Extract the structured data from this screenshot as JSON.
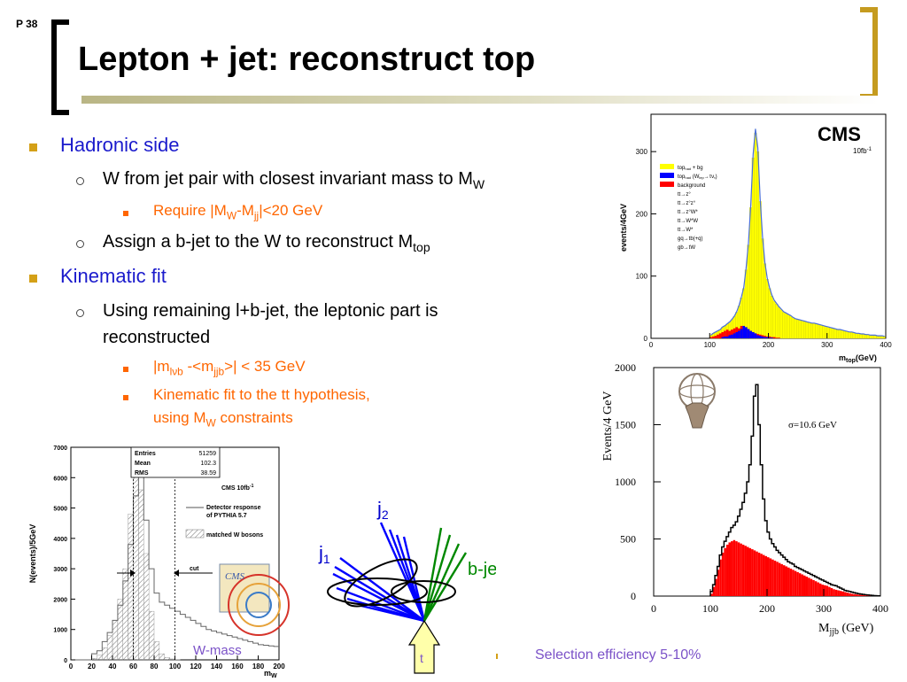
{
  "slide": {
    "page": "P 38",
    "title": "Lepton + jet: reconstruct top",
    "bullets": {
      "hadronic": "Hadronic side",
      "w_from": "W from jet pair with closest invariant mass to M",
      "w_from_sub": "W",
      "require_a": "Require |M",
      "require_sub1": "W",
      "require_b": "-M",
      "require_sub2": "jj",
      "require_c": "|<20 GeV",
      "assign": "Assign a b-jet to the W to reconstruct M",
      "assign_sub": "top",
      "kinematic": "Kinematic fit",
      "using_line1": "Using remaining l+b-jet, the leptonic part is",
      "using_line2": "reconstructed",
      "mlvb_a": "|m",
      "mlvb_sub": "lνb",
      "mlvb_b": " -<m",
      "mlvb_sub2": "jjb",
      "mlvb_c": ">| < 35 GeV",
      "fit_line1": "Kinematic fit to the tt hypothesis,",
      "fit_line2_a": "using M",
      "fit_line2_sub": "W",
      "fit_line2_b": " constraints",
      "selection": "Selection efficiency 5-10%"
    }
  },
  "diagram": {
    "j2": "j",
    "j2_sub": "2",
    "j1": "j",
    "j1_sub": "1",
    "bjet": "b-jet",
    "t": "t",
    "colors": {
      "jets": "#0000ff",
      "bjet": "#008800",
      "arrow_fill": "#ffffaa"
    }
  },
  "chart_data": [
    {
      "id": "top-mass-cms",
      "type": "histogram",
      "ylabel": "events/4GeV",
      "xlabel": "m",
      "xlabel_sub": "top",
      "xlabel_unit": "(GeV)",
      "logo": "CMS",
      "lumi": "10fb",
      "lumi_sup": "-1",
      "xlim": [
        0,
        400
      ],
      "ylim": [
        0,
        360
      ],
      "xticks": [
        "0",
        "100",
        "200",
        "300",
        "400"
      ],
      "yticks": [
        "0",
        "100",
        "200",
        "300"
      ],
      "legend": [
        {
          "label": "top",
          "sub": "had",
          "rest": " + bg",
          "color": "#ffff00"
        },
        {
          "label": "top",
          "sub": "had",
          "rest": " (W",
          "sub2": "lep",
          "rest2": "→τν",
          "sub3": "τ",
          "rest3": ")",
          "color": "#0000ff"
        },
        {
          "label": "background",
          "color": "#ff0000"
        },
        {
          "label": "tt→z°",
          "color": "none"
        },
        {
          "label": "tt→z°z°",
          "color": "none"
        },
        {
          "label": "tt→z°W*",
          "color": "none"
        },
        {
          "label": "tt→W*W",
          "color": "none"
        },
        {
          "label": "tt→W*",
          "color": "none"
        },
        {
          "label": "gq→tb(+q)",
          "color": "none"
        },
        {
          "label": "gb→tW",
          "color": "none"
        }
      ],
      "colors": {
        "signal": "#ffff00",
        "tau": "#0000ff",
        "bg": "#ff0000",
        "fit": "#4a6fd8"
      },
      "bin_width": 4,
      "x_start": 100,
      "signal": [
        5,
        8,
        10,
        12,
        14,
        18,
        20,
        23,
        26,
        30,
        35,
        42,
        52,
        65,
        80,
        110,
        150,
        210,
        290,
        330,
        300,
        220,
        160,
        120,
        95,
        80,
        68,
        60,
        55,
        50,
        46,
        42,
        40,
        38,
        36,
        33,
        31,
        30,
        29,
        28,
        27,
        26,
        25,
        24,
        24,
        23,
        22,
        21,
        20,
        19,
        18,
        17,
        16,
        15,
        14,
        14,
        13,
        12,
        11,
        10,
        10,
        9,
        8,
        8,
        7,
        7,
        6,
        6,
        5,
        5,
        5,
        4,
        4,
        4,
        3
      ],
      "tau": [
        0,
        0,
        0,
        0,
        0,
        2,
        3,
        3,
        5,
        6,
        8,
        10,
        12,
        15,
        20,
        18,
        15,
        12,
        10,
        8,
        5,
        4,
        3,
        2,
        2,
        1,
        1,
        0,
        0,
        0
      ],
      "bg": [
        2,
        3,
        4,
        6,
        8,
        10,
        12,
        14,
        12,
        14,
        16,
        18,
        16,
        20,
        18,
        16,
        14,
        12,
        10,
        8,
        7,
        6,
        5,
        4,
        3,
        3,
        2,
        2,
        1,
        1
      ]
    },
    {
      "id": "w-mass",
      "type": "histogram",
      "ylabel": "N(events)/5GeV",
      "xlabel": "m",
      "xlabel_sub": "W",
      "xlim": [
        0,
        200
      ],
      "ylim": [
        0,
        7000
      ],
      "xticks": [
        "0",
        "20",
        "40",
        "60",
        "80",
        "100",
        "120",
        "140",
        "160",
        "180",
        "200"
      ],
      "yticks": [
        "0",
        "1000",
        "2000",
        "3000",
        "4000",
        "5000",
        "6000",
        "7000"
      ],
      "stats": {
        "entries_label": "Entries",
        "entries": "51259",
        "mean_label": "Mean",
        "mean": "102.3",
        "rms_label": "RMS",
        "rms": "38.59"
      },
      "lumi_label": "CMS 10fb",
      "lumi_sup": "-1",
      "legend_detector_1": "Detector response",
      "legend_detector_2": "of PYTHIA 5.7",
      "legend_matched": "matched W bosons",
      "cut_label": "cut",
      "cms_logo": "CMS",
      "caption": "W-mass",
      "cut_lines": [
        60,
        100
      ],
      "bin_width": 5,
      "detector": [
        0,
        0,
        0,
        0,
        200,
        300,
        600,
        900,
        1300,
        1800,
        2600,
        3800,
        5400,
        6200,
        4600,
        3000,
        2200,
        1900,
        1800,
        1700,
        1600,
        1500,
        1400,
        1300,
        1200,
        1100,
        1000,
        950,
        900,
        850,
        800,
        750,
        700,
        650,
        600,
        550,
        500,
        480,
        460,
        440
      ],
      "matched": [
        0,
        0,
        0,
        0,
        50,
        150,
        400,
        800,
        1300,
        2000,
        3000,
        4800,
        6200,
        5600,
        3500,
        1600,
        600,
        200,
        80,
        30,
        10,
        0,
        0,
        0,
        0,
        0,
        0,
        0,
        0,
        0,
        0,
        0,
        0,
        0,
        0,
        0,
        0,
        0,
        0,
        0
      ]
    },
    {
      "id": "mjjb",
      "type": "histogram",
      "ylabel": "Events/4 GeV",
      "xlabel": "M",
      "xlabel_sub": "jjb",
      "xlabel_unit": " (GeV)",
      "sigma": "σ=10.6 GeV",
      "xlim": [
        0,
        400
      ],
      "ylim": [
        0,
        2000
      ],
      "xticks": [
        "0",
        "100",
        "200",
        "300",
        "400"
      ],
      "yticks": [
        "0",
        "500",
        "1000",
        "1500",
        "2000"
      ],
      "colors": {
        "line": "#000000",
        "bg": "#ff0000"
      },
      "bin_width": 4,
      "x_start": 100,
      "total": [
        40,
        100,
        180,
        260,
        360,
        430,
        480,
        520,
        560,
        600,
        620,
        650,
        700,
        760,
        820,
        900,
        1000,
        1150,
        1400,
        1750,
        1850,
        1500,
        1150,
        850,
        660,
        560,
        500,
        460,
        430,
        400,
        380,
        360,
        340,
        320,
        300,
        290,
        280,
        260,
        250,
        240,
        230,
        220,
        210,
        200,
        190,
        180,
        170,
        160,
        150,
        140,
        130,
        120,
        110,
        100,
        95,
        90,
        80,
        70,
        60,
        50,
        45,
        40,
        35,
        30,
        25,
        20,
        18,
        15,
        12,
        10,
        8,
        6,
        4,
        3,
        2
      ],
      "bg": [
        20,
        80,
        150,
        230,
        320,
        380,
        420,
        450,
        470,
        480,
        490,
        480,
        470,
        460,
        450,
        440,
        430,
        420,
        410,
        400,
        390,
        380,
        370,
        360,
        350,
        340,
        330,
        320,
        310,
        300,
        290,
        280,
        270,
        260,
        250,
        240,
        230,
        220,
        210,
        200,
        190,
        180,
        170,
        160,
        150,
        140,
        130,
        120,
        110,
        100,
        95,
        90,
        80,
        70,
        60,
        55,
        50,
        45,
        40,
        35,
        30,
        25,
        20,
        18,
        15,
        12,
        10,
        8,
        6,
        5,
        4,
        3,
        2,
        1,
        1
      ]
    }
  ]
}
